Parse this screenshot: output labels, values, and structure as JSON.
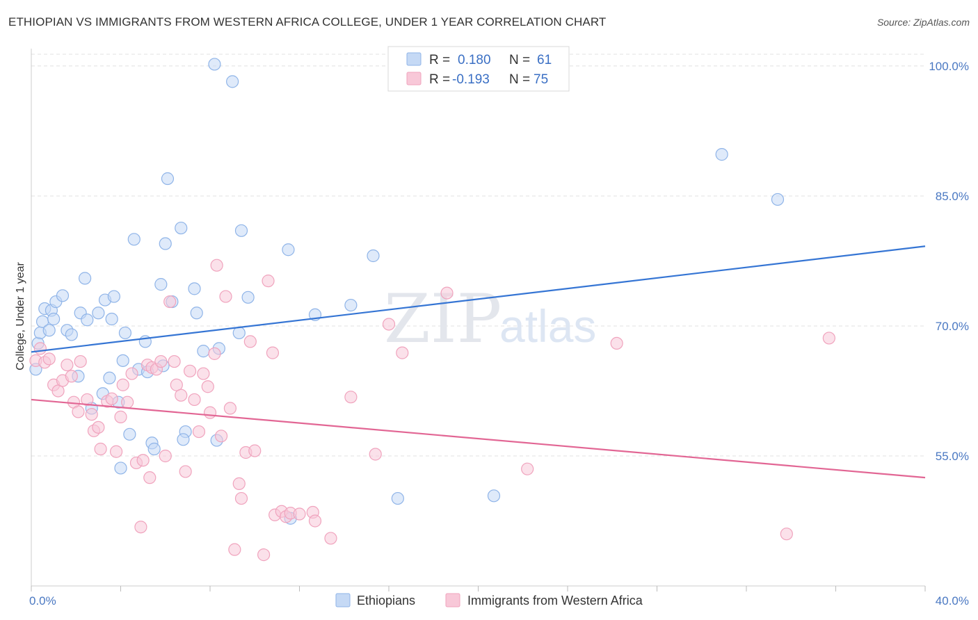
{
  "title": "ETHIOPIAN VS IMMIGRANTS FROM WESTERN AFRICA COLLEGE, UNDER 1 YEAR CORRELATION CHART",
  "source": "Source: ZipAtlas.com",
  "watermark": {
    "zip": "ZIP",
    "atlas": "atlas"
  },
  "chart_data": {
    "type": "scatter",
    "ylabel": "College, Under 1 year",
    "xlim": [
      0,
      40
    ],
    "ylim": [
      40,
      102
    ],
    "x_tick_labels": [
      {
        "value": 0,
        "label": "0.0%"
      },
      {
        "value": 40,
        "label": "40.0%"
      }
    ],
    "y_tick_labels": [
      {
        "value": 55,
        "label": "55.0%"
      },
      {
        "value": 70,
        "label": "70.0%"
      },
      {
        "value": 85,
        "label": "85.0%"
      },
      {
        "value": 100,
        "label": "100.0%"
      }
    ],
    "grid": true,
    "legend": {
      "placement": "top-center",
      "rows": [
        {
          "r_label": "R =",
          "r_value": "0.180",
          "n_label": "N =",
          "n_value": "61"
        },
        {
          "r_label": "R =",
          "r_value": "-0.193",
          "n_label": "N =",
          "n_value": "75"
        }
      ]
    },
    "series": [
      {
        "name": "Ethiopians",
        "color": "#8fb4e8",
        "fill": "#c5d9f5",
        "line_color": "#3575d4",
        "trend": [
          [
            0,
            67.0
          ],
          [
            40,
            79.2
          ]
        ],
        "points": [
          [
            0.2,
            65.0
          ],
          [
            0.3,
            68.0
          ],
          [
            0.4,
            69.2
          ],
          [
            0.5,
            70.5
          ],
          [
            0.6,
            72.0
          ],
          [
            0.8,
            69.5
          ],
          [
            0.9,
            71.8
          ],
          [
            1.0,
            70.8
          ],
          [
            1.1,
            72.8
          ],
          [
            1.4,
            73.5
          ],
          [
            1.6,
            69.5
          ],
          [
            1.8,
            69.0
          ],
          [
            2.1,
            64.2
          ],
          [
            2.2,
            71.5
          ],
          [
            2.4,
            75.5
          ],
          [
            2.5,
            70.7
          ],
          [
            2.7,
            60.5
          ],
          [
            3.0,
            71.5
          ],
          [
            3.2,
            62.2
          ],
          [
            3.3,
            73.0
          ],
          [
            3.5,
            64.0
          ],
          [
            3.6,
            70.8
          ],
          [
            3.7,
            73.4
          ],
          [
            3.9,
            61.2
          ],
          [
            4.1,
            66.0
          ],
          [
            4.2,
            69.2
          ],
          [
            4.4,
            57.5
          ],
          [
            4.6,
            80.0
          ],
          [
            4.8,
            65.0
          ],
          [
            5.1,
            68.2
          ],
          [
            5.2,
            64.7
          ],
          [
            5.4,
            56.5
          ],
          [
            5.5,
            55.8
          ],
          [
            5.8,
            74.8
          ],
          [
            5.9,
            65.4
          ],
          [
            6.0,
            79.5
          ],
          [
            6.1,
            87.0
          ],
          [
            6.3,
            72.8
          ],
          [
            6.7,
            81.3
          ],
          [
            6.9,
            57.8
          ],
          [
            6.8,
            56.9
          ],
          [
            7.3,
            74.3
          ],
          [
            7.4,
            71.5
          ],
          [
            7.7,
            67.1
          ],
          [
            8.3,
            56.8
          ],
          [
            8.4,
            67.4
          ],
          [
            8.2,
            100.2
          ],
          [
            9.0,
            98.2
          ],
          [
            9.4,
            81.0
          ],
          [
            9.3,
            69.2
          ],
          [
            9.7,
            73.3
          ],
          [
            11.5,
            78.8
          ],
          [
            11.6,
            47.8
          ],
          [
            12.7,
            71.3
          ],
          [
            14.3,
            72.4
          ],
          [
            15.3,
            78.1
          ],
          [
            16.4,
            50.1
          ],
          [
            20.7,
            50.4
          ],
          [
            30.9,
            89.8
          ],
          [
            33.4,
            84.6
          ],
          [
            4.0,
            53.6
          ]
        ]
      },
      {
        "name": "Immigrants from Western Africa",
        "color": "#f0a3bd",
        "fill": "#f8c8d8",
        "line_color": "#e26694",
        "trend": [
          [
            0,
            61.5
          ],
          [
            40,
            52.5
          ]
        ],
        "points": [
          [
            0.2,
            66.0
          ],
          [
            0.4,
            67.4
          ],
          [
            0.6,
            65.8
          ],
          [
            0.8,
            66.2
          ],
          [
            1.0,
            63.2
          ],
          [
            1.2,
            62.5
          ],
          [
            1.4,
            63.7
          ],
          [
            1.6,
            65.5
          ],
          [
            1.8,
            64.2
          ],
          [
            1.9,
            61.2
          ],
          [
            2.1,
            60.1
          ],
          [
            2.2,
            65.9
          ],
          [
            2.5,
            61.5
          ],
          [
            2.7,
            59.8
          ],
          [
            2.8,
            57.9
          ],
          [
            3.0,
            58.3
          ],
          [
            3.1,
            55.8
          ],
          [
            3.4,
            61.3
          ],
          [
            3.6,
            61.6
          ],
          [
            3.8,
            55.5
          ],
          [
            4.0,
            59.5
          ],
          [
            4.1,
            63.2
          ],
          [
            4.3,
            61.2
          ],
          [
            4.5,
            64.5
          ],
          [
            4.7,
            54.2
          ],
          [
            4.9,
            46.8
          ],
          [
            5.0,
            54.5
          ],
          [
            5.2,
            65.5
          ],
          [
            5.3,
            52.5
          ],
          [
            5.4,
            65.2
          ],
          [
            5.6,
            65.0
          ],
          [
            5.8,
            65.9
          ],
          [
            6.0,
            55.0
          ],
          [
            6.2,
            72.8
          ],
          [
            6.4,
            65.9
          ],
          [
            6.5,
            63.2
          ],
          [
            6.7,
            62.0
          ],
          [
            6.9,
            53.2
          ],
          [
            7.1,
            64.8
          ],
          [
            7.3,
            61.5
          ],
          [
            7.5,
            57.8
          ],
          [
            7.7,
            64.5
          ],
          [
            7.9,
            63.0
          ],
          [
            8.0,
            60.0
          ],
          [
            8.2,
            66.8
          ],
          [
            8.3,
            77.0
          ],
          [
            8.5,
            57.3
          ],
          [
            8.7,
            73.4
          ],
          [
            8.9,
            60.5
          ],
          [
            9.1,
            44.2
          ],
          [
            9.3,
            51.8
          ],
          [
            9.4,
            50.1
          ],
          [
            9.6,
            55.4
          ],
          [
            9.8,
            68.2
          ],
          [
            10.0,
            55.6
          ],
          [
            10.4,
            43.6
          ],
          [
            10.6,
            75.2
          ],
          [
            10.8,
            66.9
          ],
          [
            10.9,
            48.2
          ],
          [
            11.2,
            48.6
          ],
          [
            11.4,
            48.0
          ],
          [
            11.6,
            48.4
          ],
          [
            12.0,
            48.3
          ],
          [
            12.6,
            48.5
          ],
          [
            12.7,
            47.5
          ],
          [
            13.4,
            45.5
          ],
          [
            14.3,
            61.8
          ],
          [
            15.4,
            55.2
          ],
          [
            16.0,
            70.2
          ],
          [
            16.6,
            66.9
          ],
          [
            18.6,
            73.8
          ],
          [
            22.2,
            53.5
          ],
          [
            26.2,
            68.0
          ],
          [
            33.8,
            46.0
          ],
          [
            35.7,
            68.6
          ]
        ]
      }
    ]
  }
}
